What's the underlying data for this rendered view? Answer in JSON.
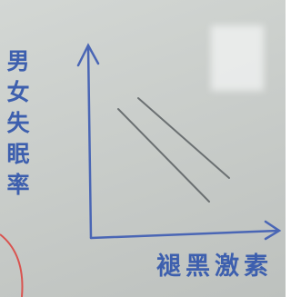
{
  "sketch": {
    "y_label": "男女失眠率",
    "x_label": "褪黑激素"
  }
}
